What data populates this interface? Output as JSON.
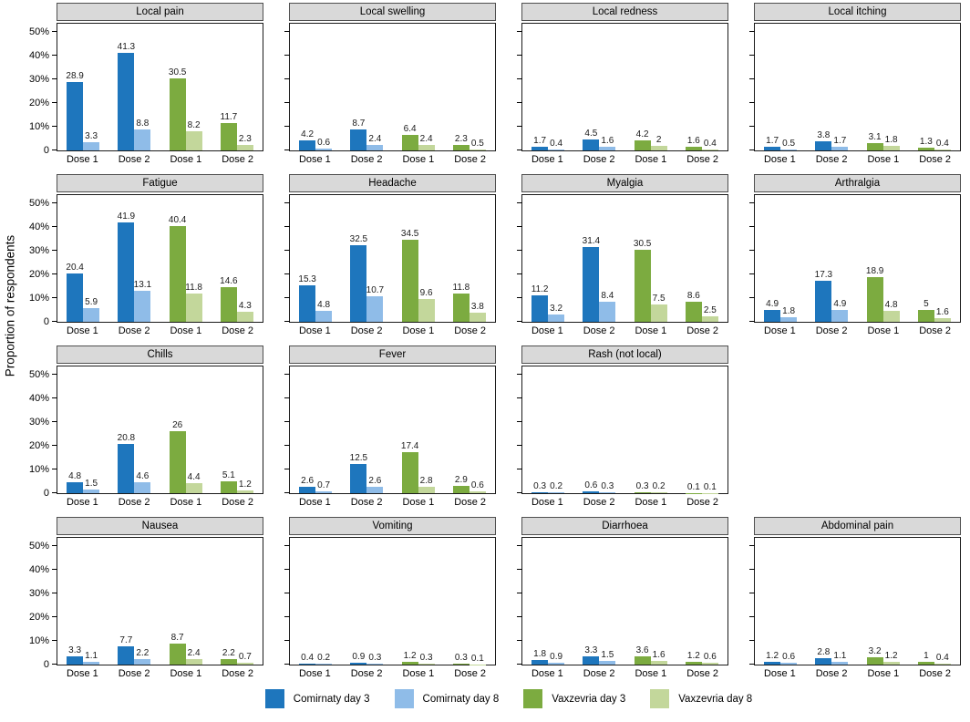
{
  "figure": {
    "ylabel": "Proportion of respondents",
    "ytick_labels": [
      "50%",
      "40%",
      "30%",
      "20%",
      "10%",
      "0"
    ],
    "ytick_values": [
      50,
      40,
      30,
      20,
      10,
      0
    ],
    "dose_labels": [
      "Dose 1",
      "Dose 2",
      "Dose 1",
      "Dose 2"
    ]
  },
  "legend": {
    "items": [
      {
        "label": "Comirnaty day 3",
        "color": "#1e76bd"
      },
      {
        "label": "Comirnaty day 8",
        "color": "#8fbce8"
      },
      {
        "label": "Vaxzevria day 3",
        "color": "#7cab40"
      },
      {
        "label": "Vaxzevria  day 8",
        "color": "#c3d79b"
      }
    ]
  },
  "chart_data": {
    "type": "bar",
    "ylabel": "Proportion of respondents",
    "unit": "%",
    "ylim": [
      0,
      53.5
    ],
    "grid": "off",
    "legend_position": "bottom",
    "categories": [
      "Dose 1",
      "Dose 2",
      "Dose 1",
      "Dose 2"
    ],
    "category_vaccines": [
      "Comirnaty",
      "Comirnaty",
      "Vaxzevria",
      "Vaxzevria"
    ],
    "series_names": [
      "Comirnaty day 3",
      "Comirnaty day 8",
      "Vaxzevria day 3",
      "Vaxzevria day 8"
    ],
    "group_colors": [
      {
        "day3": "#1e76bd",
        "day8": "#8fbce8"
      },
      {
        "day3": "#1e76bd",
        "day8": "#8fbce8"
      },
      {
        "day3": "#7cab40",
        "day8": "#c3d79b"
      },
      {
        "day3": "#7cab40",
        "day8": "#c3d79b"
      }
    ],
    "panels": [
      {
        "title": "Local pain",
        "day3": [
          28.9,
          41.3,
          30.5,
          11.7
        ],
        "day8": [
          3.3,
          8.8,
          8.2,
          2.3
        ]
      },
      {
        "title": "Local swelling",
        "day3": [
          4.2,
          8.7,
          6.4,
          2.3
        ],
        "day8": [
          0.6,
          2.4,
          2.4,
          0.5
        ]
      },
      {
        "title": "Local redness",
        "day3": [
          1.7,
          4.5,
          4.2,
          1.6
        ],
        "day8": [
          0.4,
          1.6,
          2,
          0.4
        ]
      },
      {
        "title": "Local itching",
        "day3": [
          1.7,
          3.8,
          3.1,
          1.3
        ],
        "day8": [
          0.5,
          1.7,
          1.8,
          0.4
        ]
      },
      {
        "title": "Fatigue",
        "day3": [
          20.4,
          41.9,
          40.4,
          14.6
        ],
        "day8": [
          5.9,
          13.1,
          11.8,
          4.3
        ]
      },
      {
        "title": "Headache",
        "day3": [
          15.3,
          32.5,
          34.5,
          11.8
        ],
        "day8": [
          4.8,
          10.7,
          9.6,
          3.8
        ]
      },
      {
        "title": "Myalgia",
        "day3": [
          11.2,
          31.4,
          30.5,
          8.6
        ],
        "day8": [
          3.2,
          8.4,
          7.5,
          2.5
        ]
      },
      {
        "title": "Arthralgia",
        "day3": [
          4.9,
          17.3,
          18.9,
          5
        ],
        "day8": [
          1.8,
          4.9,
          4.8,
          1.6
        ]
      },
      {
        "title": "Chills",
        "day3": [
          4.8,
          20.8,
          26,
          5.1
        ],
        "day8": [
          1.5,
          4.6,
          4.4,
          1.2
        ]
      },
      {
        "title": "Fever",
        "day3": [
          2.6,
          12.5,
          17.4,
          2.9
        ],
        "day8": [
          0.7,
          2.6,
          2.8,
          0.6
        ]
      },
      {
        "title": "Rash (not local)",
        "day3": [
          0.3,
          0.6,
          0.3,
          0.1
        ],
        "day8": [
          0.2,
          0.3,
          0.2,
          0.1
        ]
      },
      {
        "title": "Nausea",
        "day3": [
          3.3,
          7.7,
          8.7,
          2.2
        ],
        "day8": [
          1.1,
          2.2,
          2.4,
          0.7
        ]
      },
      {
        "title": "Vomiting",
        "day3": [
          0.4,
          0.9,
          1.2,
          0.3
        ],
        "day8": [
          0.2,
          0.3,
          0.3,
          0.1
        ]
      },
      {
        "title": "Diarrhoea",
        "day3": [
          1.8,
          3.3,
          3.6,
          1.2
        ],
        "day8": [
          0.9,
          1.5,
          1.6,
          0.6
        ]
      },
      {
        "title": "Abdominal pain",
        "day3": [
          1.2,
          2.8,
          3.2,
          1
        ],
        "day8": [
          0.6,
          1.1,
          1.2,
          0.4
        ]
      }
    ],
    "layout": {
      "grid_shape": "4x4",
      "empty_cell_index": 11
    }
  }
}
